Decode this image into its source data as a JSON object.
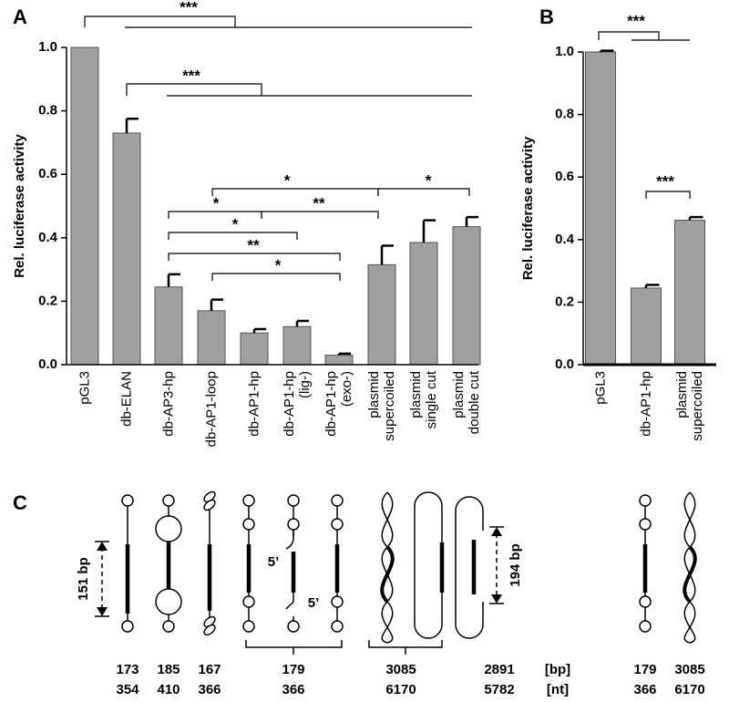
{
  "chart_data": [
    {
      "type": "bar",
      "panel": "A",
      "ylabel": "Rel. luciferase activity",
      "categories": [
        "pGL3",
        "db-ELAN",
        "db-AP3-hp",
        "db-AP1-loop",
        "db-AP1-hp",
        "db-AP1-hp\n(lig-)",
        "db-AP1-hp\n(exo-)",
        "plasmid\nsupercoiled",
        "plasmid\nsingle cut",
        "plasmid\ndouble cut"
      ],
      "values": [
        1.0,
        0.73,
        0.245,
        0.17,
        0.1,
        0.12,
        0.03,
        0.315,
        0.385,
        0.435
      ],
      "errors": [
        null,
        0.045,
        0.04,
        0.035,
        0.012,
        0.018,
        0.005,
        0.06,
        0.07,
        0.03
      ],
      "color": "#a0a0a0",
      "ylim": [
        0,
        1
      ],
      "yticks": [
        {
          "value": 0,
          "label": "0.0"
        },
        0.2,
        0.4,
        0.6,
        0.8,
        {
          "value": 1,
          "label": "1.0"
        }
      ],
      "annotations": [
        "***",
        "***",
        "*",
        "*",
        "*",
        "**",
        "*",
        "**",
        "*"
      ]
    },
    {
      "type": "bar",
      "panel": "B",
      "ylabel": "Rel. luciferase activity",
      "categories": [
        "pGL3",
        "db-AP1-hp",
        "plasmid\nsupercoiled"
      ],
      "values": [
        1.0,
        0.245,
        0.462
      ],
      "errors": [
        0.004,
        0.01,
        0.01
      ],
      "color": "#a0a0a0",
      "ylim": [
        0,
        1
      ],
      "yticks": [
        {
          "value": 0,
          "label": "0.0"
        },
        0.2,
        0.4,
        0.6,
        0.8,
        {
          "value": 1,
          "label": "1.0"
        }
      ],
      "annotations": [
        "***",
        "***"
      ]
    }
  ],
  "diagram": {
    "panel": "C",
    "length_labels": [
      "151 bp",
      "194 bp"
    ],
    "end_labels": [
      "5’",
      "5’"
    ],
    "sizes": [
      [
        173,
        354
      ],
      [
        185,
        410
      ],
      [
        167,
        366
      ],
      [
        179,
        366
      ],
      [
        3085,
        6170
      ],
      [
        2891,
        5782
      ],
      [
        179,
        366
      ],
      [
        3085,
        6170
      ]
    ],
    "units": [
      "[bp]",
      "[nt]"
    ]
  }
}
